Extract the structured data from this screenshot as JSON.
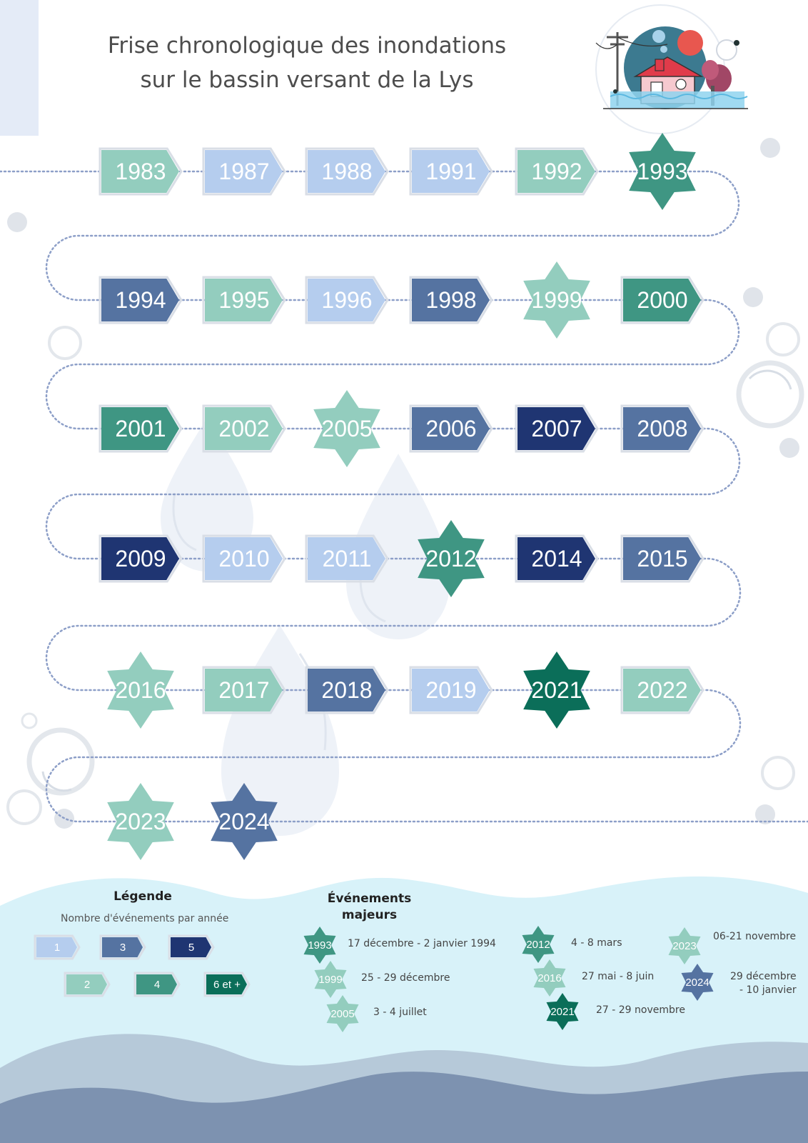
{
  "title_lines": [
    "Frise chronologique des inondations",
    "sur le bassin versant de la Lys"
  ],
  "colors": {
    "c1": "#b5cdee",
    "c2": "#93cdbe",
    "c3": "#5573a1",
    "c4": "#3f9683",
    "c5": "#1f3572",
    "c6": "#0b6e59"
  },
  "timeline": [
    {
      "year": "1983",
      "count": "2",
      "major": false
    },
    {
      "year": "1987",
      "count": "1",
      "major": false
    },
    {
      "year": "1988",
      "count": "1",
      "major": false
    },
    {
      "year": "1991",
      "count": "1",
      "major": false
    },
    {
      "year": "1992",
      "count": "2",
      "major": false
    },
    {
      "year": "1993",
      "count": "4",
      "major": true
    },
    {
      "year": "1994",
      "count": "3",
      "major": false
    },
    {
      "year": "1995",
      "count": "2",
      "major": false
    },
    {
      "year": "1996",
      "count": "1",
      "major": false
    },
    {
      "year": "1998",
      "count": "3",
      "major": false
    },
    {
      "year": "1999",
      "count": "2",
      "major": true
    },
    {
      "year": "2000",
      "count": "4",
      "major": false
    },
    {
      "year": "2001",
      "count": "4",
      "major": false
    },
    {
      "year": "2002",
      "count": "2",
      "major": false
    },
    {
      "year": "2005",
      "count": "2",
      "major": true
    },
    {
      "year": "2006",
      "count": "3",
      "major": false
    },
    {
      "year": "2007",
      "count": "5",
      "major": false
    },
    {
      "year": "2008",
      "count": "3",
      "major": false
    },
    {
      "year": "2009",
      "count": "5",
      "major": false
    },
    {
      "year": "2010",
      "count": "1",
      "major": false
    },
    {
      "year": "2011",
      "count": "1",
      "major": false
    },
    {
      "year": "2012",
      "count": "4",
      "major": true
    },
    {
      "year": "2014",
      "count": "5",
      "major": false
    },
    {
      "year": "2015",
      "count": "3",
      "major": false
    },
    {
      "year": "2016",
      "count": "2",
      "major": true
    },
    {
      "year": "2017",
      "count": "2",
      "major": false
    },
    {
      "year": "2018",
      "count": "3",
      "major": false
    },
    {
      "year": "2019",
      "count": "1",
      "major": false
    },
    {
      "year": "2021",
      "count": "6 et +",
      "major": true
    },
    {
      "year": "2022",
      "count": "2",
      "major": false
    },
    {
      "year": "2023",
      "count": "2",
      "major": true
    },
    {
      "year": "2024",
      "count": "3",
      "major": true
    }
  ],
  "legend": {
    "title": "Légende",
    "subtitle": "Nombre d'événements par année",
    "items": [
      {
        "label": "1",
        "count": "1"
      },
      {
        "label": "3",
        "count": "3"
      },
      {
        "label": "5",
        "count": "5"
      },
      {
        "label": "2",
        "count": "2"
      },
      {
        "label": "4",
        "count": "4"
      },
      {
        "label": "6 et +",
        "count": "6 et +"
      }
    ]
  },
  "major_events": {
    "title_lines": [
      "Événements",
      "majeurs"
    ],
    "items": [
      {
        "year": "1993",
        "count": "4",
        "dates": [
          "17 décembre - 2 janvier 1994"
        ]
      },
      {
        "year": "1999",
        "count": "2",
        "dates": [
          "25 - 29 décembre"
        ]
      },
      {
        "year": "2005",
        "count": "2",
        "dates": [
          "3 - 4 juillet"
        ]
      },
      {
        "year": "2012",
        "count": "4",
        "dates": [
          "4 - 8 mars"
        ]
      },
      {
        "year": "2016",
        "count": "2",
        "dates": [
          "27 mai - 8 juin"
        ]
      },
      {
        "year": "2021",
        "count": "6 et +",
        "dates": [
          "27 - 29 novembre"
        ]
      },
      {
        "year": "2023",
        "count": "2",
        "dates": [
          "06-21 novembre"
        ]
      },
      {
        "year": "2024",
        "count": "3",
        "dates": [
          "29 décembre",
          "- 10 janvier"
        ]
      }
    ]
  }
}
